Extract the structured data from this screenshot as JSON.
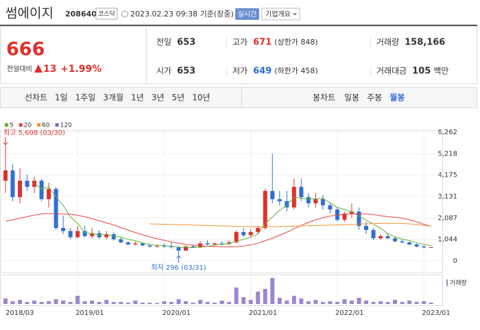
{
  "header": {
    "name": "썸에이지",
    "code": "208640",
    "market": "코스닥",
    "timestamp": "2023.02.23 09:38 기준(장중)",
    "realtime_button": "실시간",
    "company_button": "기업개요"
  },
  "quote": {
    "price": "666",
    "change_label": "전일대비",
    "change": "13",
    "change_rate": "+1.99%"
  },
  "stats": [
    [
      {
        "label": "전일",
        "value": "653"
      },
      {
        "label": "고가",
        "value": "671",
        "color": "#e0302b",
        "note": "(상한가 848)"
      },
      {
        "label": "거래량",
        "value": "158,166"
      }
    ],
    [
      {
        "label": "시가",
        "value": "653"
      },
      {
        "label": "저가",
        "value": "649",
        "color": "#2f6fd6",
        "note": "(하한가 458)"
      },
      {
        "label": "거래대금",
        "value": "105",
        "unit": "백만"
      }
    ]
  ],
  "toolbar": {
    "line_chart": "선차트",
    "periods": [
      "1일",
      "1주일",
      "3개월",
      "1년",
      "3년",
      "5년",
      "10년"
    ],
    "candle_chart": "봉차트",
    "candle_periods": [
      {
        "label": "일봉",
        "selected": false
      },
      {
        "label": "주봉",
        "selected": false
      },
      {
        "label": "월봉",
        "selected": true
      }
    ]
  },
  "chart_data": {
    "type": "candlestick",
    "x": [
      "2018/03",
      "2018/04",
      "2018/05",
      "2018/06",
      "2018/07",
      "2018/08",
      "2018/09",
      "2018/10",
      "2018/11",
      "2018/12",
      "2019/01",
      "2019/02",
      "2019/03",
      "2019/04",
      "2019/05",
      "2019/06",
      "2019/07",
      "2019/08",
      "2019/09",
      "2019/10",
      "2019/11",
      "2019/12",
      "2020/01",
      "2020/02",
      "2020/03",
      "2020/04",
      "2020/05",
      "2020/06",
      "2020/07",
      "2020/08",
      "2020/09",
      "2020/10",
      "2020/11",
      "2020/12",
      "2021/01",
      "2021/02",
      "2021/03",
      "2021/04",
      "2021/05",
      "2021/06",
      "2021/07",
      "2021/08",
      "2021/09",
      "2021/10",
      "2021/11",
      "2021/12",
      "2022/01",
      "2022/02",
      "2022/03",
      "2022/04",
      "2022/05",
      "2022/06",
      "2022/07",
      "2022/08",
      "2022/09",
      "2022/10",
      "2022/11",
      "2022/12",
      "2023/01",
      "2023/02"
    ],
    "xticks": [
      "2018/03",
      "2019/01",
      "2020/01",
      "2021/01",
      "2022/01",
      "2023/01"
    ],
    "ylim": [
      0,
      6262
    ],
    "yticks": [
      {
        "value": 6262,
        "label": "6,262"
      },
      {
        "value": 5218,
        "label": "5,218"
      },
      {
        "value": 4175,
        "label": "4,175"
      },
      {
        "value": 3131,
        "label": "3,131"
      },
      {
        "value": 2087,
        "label": "2,087"
      },
      {
        "value": 1044,
        "label": "1,044"
      },
      0
    ],
    "grid": true,
    "up_color": "#e0302b",
    "down_color": "#2f6fd6",
    "open": [
      3900,
      4400,
      3100,
      3900,
      3600,
      3900,
      3000,
      3500,
      1600,
      1450,
      1150,
      1450,
      1200,
      1350,
      1150,
      1300,
      1050,
      900,
      800,
      850,
      750,
      700,
      720,
      700,
      680,
      500,
      700,
      650,
      850,
      800,
      850,
      820,
      900,
      1400,
      1250,
      1400,
      1600,
      3400,
      3000,
      2900,
      2600,
      3600,
      3100,
      2800,
      3000,
      2700,
      2500,
      2000,
      2300,
      2400,
      1700,
      1500,
      1100,
      1200,
      1100,
      950,
      900,
      800,
      700,
      653
    ],
    "high": [
      5608,
      4700,
      4500,
      4200,
      4100,
      4000,
      3800,
      3600,
      2200,
      1600,
      1700,
      1700,
      1600,
      1500,
      1450,
      1400,
      1150,
      950,
      950,
      900,
      800,
      800,
      850,
      900,
      720,
      750,
      800,
      950,
      1000,
      900,
      950,
      1000,
      1500,
      1600,
      1550,
      1700,
      3500,
      5200,
      3400,
      3400,
      4000,
      4000,
      3300,
      3300,
      3200,
      2800,
      2600,
      2400,
      2800,
      2600,
      1900,
      1600,
      1300,
      1350,
      1200,
      1050,
      950,
      850,
      760,
      671
    ],
    "low": [
      3300,
      2900,
      2800,
      3400,
      3300,
      2900,
      2600,
      1500,
      1300,
      1050,
      1100,
      1150,
      1100,
      1050,
      1050,
      1000,
      850,
      750,
      750,
      700,
      650,
      650,
      650,
      600,
      296,
      480,
      620,
      620,
      750,
      720,
      780,
      780,
      850,
      1150,
      1150,
      1300,
      1500,
      2800,
      2700,
      2400,
      2500,
      2900,
      2600,
      2600,
      2500,
      2300,
      1900,
      1900,
      2100,
      1500,
      1300,
      1000,
      1000,
      1050,
      900,
      850,
      750,
      650,
      620,
      649
    ],
    "close": [
      4400,
      3100,
      3900,
      3600,
      3900,
      3000,
      3500,
      1600,
      1450,
      1150,
      1450,
      1200,
      1350,
      1150,
      1300,
      1050,
      900,
      800,
      850,
      750,
      700,
      720,
      700,
      680,
      500,
      700,
      650,
      850,
      800,
      850,
      820,
      900,
      1400,
      1250,
      1400,
      1600,
      3400,
      3000,
      2900,
      2600,
      3600,
      3100,
      2800,
      3000,
      2700,
      2500,
      2000,
      2300,
      2400,
      1700,
      1500,
      1100,
      1200,
      1100,
      950,
      900,
      800,
      700,
      653,
      666
    ],
    "moving_averages": [
      {
        "name": "5",
        "color": "#5cb531",
        "values": [
          null,
          null,
          null,
          null,
          3780,
          3500,
          3580,
          3120,
          2690,
          2140,
          1830,
          1370,
          1320,
          1260,
          1290,
          1210,
          1150,
          1040,
          980,
          870,
          800,
          764,
          744,
          710,
          660,
          660,
          646,
          676,
          700,
          770,
          794,
          844,
          954,
          1044,
          1154,
          1310,
          1810,
          2130,
          2460,
          2700,
          3100,
          3040,
          3000,
          3020,
          3040,
          2820,
          2600,
          2500,
          2380,
          2180,
          1980,
          1800,
          1580,
          1320,
          1170,
          1050,
          990,
          890,
          801,
          744
        ]
      },
      {
        "name": "20",
        "color": "#e8453c",
        "values": [
          1930,
          2000,
          2080,
          2150,
          2230,
          2280,
          2300,
          2300,
          2280,
          2260,
          2220,
          2150,
          2050,
          1950,
          1850,
          1750,
          1620,
          1500,
          1380,
          1270,
          1170,
          1080,
          1000,
          920,
          860,
          800,
          760,
          720,
          700,
          690,
          680,
          680,
          690,
          720,
          780,
          860,
          980,
          1100,
          1250,
          1400,
          1560,
          1720,
          1870,
          2000,
          2100,
          2180,
          2230,
          2260,
          2280,
          2290,
          2280,
          2250,
          2200,
          2150,
          2120,
          2080,
          2000,
          1900,
          1780,
          1680
        ]
      },
      {
        "name": "60",
        "color": "#f0922b",
        "values": [
          null,
          null,
          null,
          null,
          null,
          null,
          null,
          null,
          null,
          null,
          null,
          null,
          null,
          null,
          null,
          null,
          null,
          null,
          null,
          null,
          1800,
          1790,
          1780,
          1770,
          1760,
          1750,
          1740,
          1730,
          1720,
          1710,
          1700,
          1690,
          1680,
          1670,
          1665,
          1660,
          1660,
          1665,
          1670,
          1680,
          1690,
          1700,
          1710,
          1720,
          1730,
          1740,
          1750,
          1760,
          1770,
          1790,
          1800,
          1810,
          1820,
          1830,
          1830,
          1820,
          1800,
          1770,
          1730,
          1690
        ]
      },
      {
        "name": "120",
        "color": "#8b5fc7",
        "values": [
          null,
          null,
          null,
          null,
          null,
          null,
          null,
          null,
          null,
          null,
          null,
          null,
          null,
          null,
          null,
          null,
          null,
          null,
          null,
          null,
          null,
          null,
          null,
          null,
          null,
          null,
          null,
          null,
          null,
          null,
          null,
          null,
          null,
          null,
          null,
          null,
          null,
          null,
          null,
          null,
          null,
          null,
          null,
          null,
          null,
          null,
          null,
          null,
          null,
          null,
          null,
          null,
          null,
          null,
          null,
          null,
          null,
          null,
          null,
          null
        ]
      }
    ],
    "volume": {
      "name": "거래량",
      "color": "#9b87cf",
      "ylim": [
        0,
        40000000
      ],
      "values": [
        8000000,
        4000000,
        6000000,
        3000000,
        5000000,
        3000000,
        4000000,
        7000000,
        5000000,
        3000000,
        12000000,
        4000000,
        5000000,
        3000000,
        6000000,
        3000000,
        3000000,
        2000000,
        5000000,
        2000000,
        2000000,
        1500000,
        4000000,
        3000000,
        7000000,
        4000000,
        2000000,
        6000000,
        3000000,
        2000000,
        5000000,
        3000000,
        24000000,
        10000000,
        6000000,
        18000000,
        22000000,
        38000000,
        9000000,
        5000000,
        12000000,
        8000000,
        4000000,
        6000000,
        3000000,
        4000000,
        3000000,
        7000000,
        5000000,
        9000000,
        5000000,
        3000000,
        4000000,
        3000000,
        6000000,
        3000000,
        5000000,
        3000000,
        4000000,
        2000000
      ]
    },
    "annotations": [
      {
        "label": "최고 5,608 (03/30)",
        "x": "2018/03",
        "value": 5608,
        "color": "#e0302b"
      },
      {
        "label": "최저 296 (03/31)",
        "x": "2020/03",
        "value": 296,
        "color": "#2f6fd6"
      }
    ]
  }
}
